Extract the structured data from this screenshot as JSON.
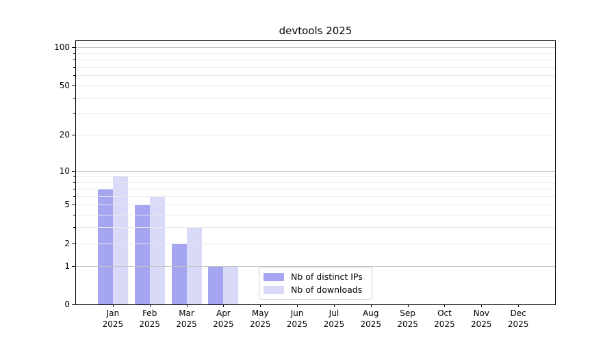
{
  "title": "devtools 2025",
  "chart_data": {
    "type": "bar",
    "title": "devtools 2025",
    "categories": [
      {
        "line1": "Jan",
        "line2": "2025"
      },
      {
        "line1": "Feb",
        "line2": "2025"
      },
      {
        "line1": "Mar",
        "line2": "2025"
      },
      {
        "line1": "Apr",
        "line2": "2025"
      },
      {
        "line1": "May",
        "line2": "2025"
      },
      {
        "line1": "Jun",
        "line2": "2025"
      },
      {
        "line1": "Jul",
        "line2": "2025"
      },
      {
        "line1": "Aug",
        "line2": "2025"
      },
      {
        "line1": "Sep",
        "line2": "2025"
      },
      {
        "line1": "Oct",
        "line2": "2025"
      },
      {
        "line1": "Nov",
        "line2": "2025"
      },
      {
        "line1": "Dec",
        "line2": "2025"
      }
    ],
    "series": [
      {
        "name": "Nb of distinct IPs",
        "color": "#a5a5f2",
        "values": [
          7,
          5,
          2,
          1,
          0,
          0,
          0,
          0,
          0,
          0,
          0,
          0
        ]
      },
      {
        "name": "Nb of downloads",
        "color": "#d9d9f8",
        "values": [
          9,
          6,
          3,
          1,
          0,
          0,
          0,
          0,
          0,
          0,
          0,
          0
        ]
      }
    ],
    "y_axis": {
      "scale": "log1p",
      "lim": [
        0,
        112
      ],
      "labeled_ticks": [
        0,
        1,
        2,
        5,
        10,
        20,
        50,
        100
      ],
      "major_gridlines": [
        1,
        10,
        100
      ],
      "minor_gridlines": [
        2,
        3,
        4,
        5,
        6,
        7,
        8,
        9,
        20,
        30,
        40,
        50,
        60,
        70,
        80,
        90
      ]
    },
    "grid": "horizontal",
    "legend_position": "lower-center-inside"
  },
  "legend": {
    "items": [
      {
        "label": "Nb of distinct IPs",
        "color": "#a5a5f2"
      },
      {
        "label": "Nb of downloads",
        "color": "#d9d9f8"
      }
    ]
  },
  "colors": {
    "grid_major": "#c3c3c3",
    "grid_minor": "#e9e9e9",
    "spine": "#000000",
    "legend_border": "#cccccc",
    "text": "#000000"
  }
}
